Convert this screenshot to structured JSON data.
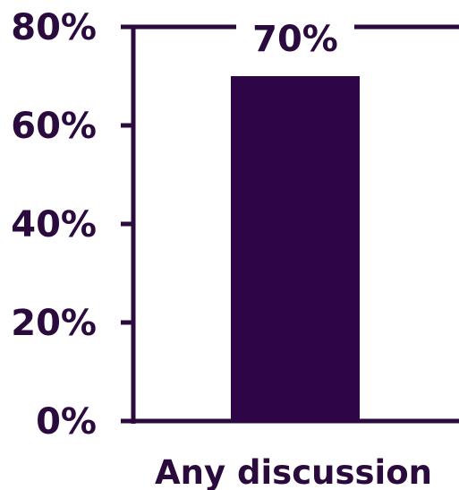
{
  "chart_data": {
    "type": "bar",
    "categories": [
      "Any discussion"
    ],
    "values": [
      70
    ],
    "data_labels": [
      "70%"
    ],
    "title": "",
    "xlabel": "",
    "ylabel": "",
    "ylim": [
      0,
      80
    ],
    "yticks": [
      0,
      20,
      40,
      60,
      80
    ],
    "ytick_labels": [
      "0%",
      "20%",
      "40%",
      "60%",
      "80%"
    ],
    "grid": false,
    "legend": "none",
    "bar_color": "#2e0648",
    "axis_color": "#2b0a3d"
  }
}
